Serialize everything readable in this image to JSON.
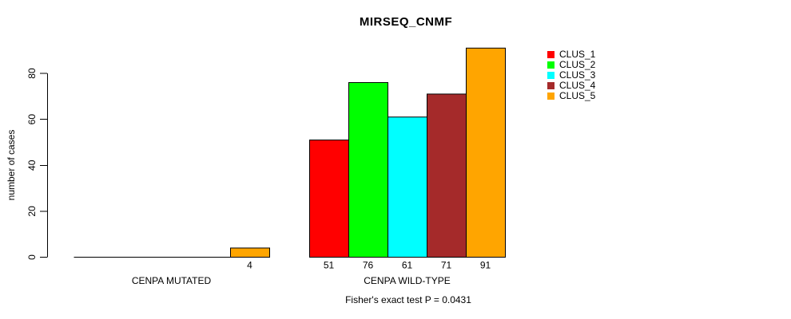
{
  "chart_data": {
    "type": "bar",
    "title": "MIRSEQ_CNMF",
    "ylabel": "number of cases",
    "xlabel": "",
    "categories": [
      "CENPA MUTATED",
      "CENPA WILD-TYPE"
    ],
    "series": [
      {
        "name": "CLUS_1",
        "color": "#FF0000",
        "values": [
          0,
          51
        ]
      },
      {
        "name": "CLUS_2",
        "color": "#00FF00",
        "values": [
          0,
          76
        ]
      },
      {
        "name": "CLUS_3",
        "color": "#00FFFF",
        "values": [
          0,
          61
        ]
      },
      {
        "name": "CLUS_4",
        "color": "#A52A2A",
        "values": [
          0,
          71
        ]
      },
      {
        "name": "CLUS_5",
        "color": "#FFA500",
        "values": [
          4,
          91
        ]
      }
    ],
    "yticks": [
      0,
      20,
      40,
      60,
      80
    ],
    "ylim": [
      0,
      92
    ],
    "grid": false,
    "legend_position": "top-right",
    "value_label_rule": "nonzero bar values printed below baseline",
    "annotation": "Fisher's exact test P = 0.0431"
  },
  "colors": {
    "background": "#FFFFFF",
    "axis": "#000000",
    "bar_border": "#000000",
    "text": "#000000"
  }
}
